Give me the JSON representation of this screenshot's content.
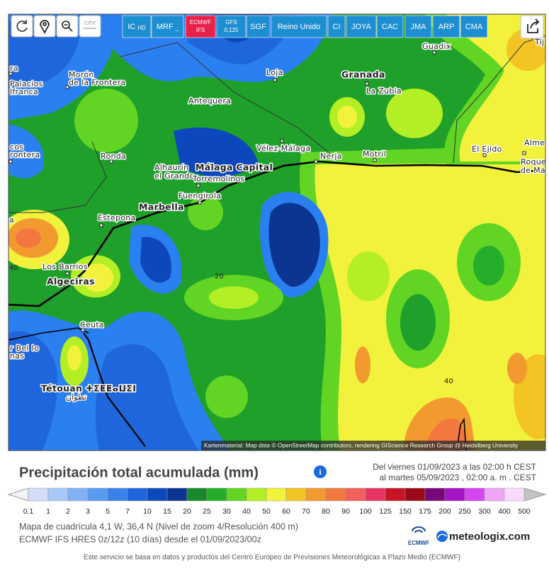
{
  "toolbar": {
    "city": "CITY",
    "models": [
      {
        "name": "IC",
        "sub": "HD"
      },
      {
        "name": "MRF",
        "sub": "_"
      },
      {
        "name": "ECMWF",
        "sub": "IFS"
      },
      {
        "name": "GFS",
        "sub": "0,125"
      },
      {
        "name": "SGF"
      },
      {
        "name": "Reino Unido"
      },
      {
        "name": "CI"
      },
      {
        "name": "JOYA"
      },
      {
        "name": "CAC"
      },
      {
        "name": "JMA"
      },
      {
        "name": "ARP"
      },
      {
        "name": "CMA"
      }
    ]
  },
  "map": {
    "places": [
      {
        "name": "Tij"
      },
      {
        "name": "Guadix"
      },
      {
        "name": "ra"
      },
      {
        "name": "Loja"
      },
      {
        "name": "Granada"
      },
      {
        "name": "Morón"
      },
      {
        "name": "de la Frontera"
      },
      {
        "name": "Palacios"
      },
      {
        "name": "lfranca"
      },
      {
        "name": "La Zubia"
      },
      {
        "name": "Antequera"
      },
      {
        "name": "cos"
      },
      {
        "name": "rontera"
      },
      {
        "name": "Vélez-Málaga"
      },
      {
        "name": "Alme"
      },
      {
        "name": "Nerja"
      },
      {
        "name": "Motril"
      },
      {
        "name": "El Ejido"
      },
      {
        "name": "Ronda"
      },
      {
        "name": "Alhaurín"
      },
      {
        "name": "Málaga Capital"
      },
      {
        "name": "Roque"
      },
      {
        "name": "el Grande"
      },
      {
        "name": "Torremolinos"
      },
      {
        "name": "de Ma"
      },
      {
        "name": "Fuengirola"
      },
      {
        "name": "Marbella"
      },
      {
        "name": "Estepona"
      },
      {
        "name": "a"
      },
      {
        "name": "Los Barrios"
      },
      {
        "name": "Algeciras"
      },
      {
        "name": "Ceuta"
      },
      {
        "name": "r Bel Io"
      },
      {
        "name": "nas"
      },
      {
        "name": "Tétouan ⵜⵉⵟⵟⴰⵡⵉⵏ"
      },
      {
        "name": "تطوان"
      }
    ],
    "contour_labels": [
      "40",
      "20",
      "40"
    ],
    "attribution": "Kartenmaterial: Map data © OpenStreetMap contributors, rendering GIScience Research Group @ Heidelberg University"
  },
  "legend": {
    "title": "Precipitación total acumulada (mm)",
    "period": [
      "Del viernes 01/09/2023 a  las 02:00 h  CEST",
      "al martes 05/09/2023 , 02:00 a. m . CEST"
    ],
    "scale_labels": [
      "0.1",
      "1",
      "2",
      "3",
      "5",
      "7",
      "10",
      "15",
      "20",
      "25",
      "30",
      "40",
      "50",
      "60",
      "70",
      "80",
      "90",
      "100",
      "125",
      "150",
      "175",
      "200",
      "250",
      "300",
      "400",
      "500"
    ],
    "colors": [
      "#d4dcf8",
      "#a8c8f8",
      "#82b2f6",
      "#5a9af0",
      "#3a82ea",
      "#1f66dc",
      "#0c48bc",
      "#0b3590",
      "#17892a",
      "#26ad2a",
      "#62d424",
      "#b4ee24",
      "#f2f23c",
      "#f2c424",
      "#f29a30",
      "#f27840",
      "#f2605e",
      "#e83462",
      "#c81424",
      "#9a0a1a",
      "#76087a",
      "#a414c4",
      "#d446f2",
      "#f0a6f8",
      "#f8dafc"
    ],
    "info_lines": [
      "Mapa de cuadrícula 4,1 W, 36,4 N (Nivel de zoom 4/Resolución 400 m)",
      "ECMWF IFS HRES 0z/12z (10 días) desde el 01/09/2023/00z"
    ],
    "logos": [
      "ECMWF",
      "meteologix.com"
    ],
    "footer": "Este servicio se basa en datos y productos del Centro Europeo de Previsiones Meteorológicas a Plazo Medio (ECMWF)"
  }
}
